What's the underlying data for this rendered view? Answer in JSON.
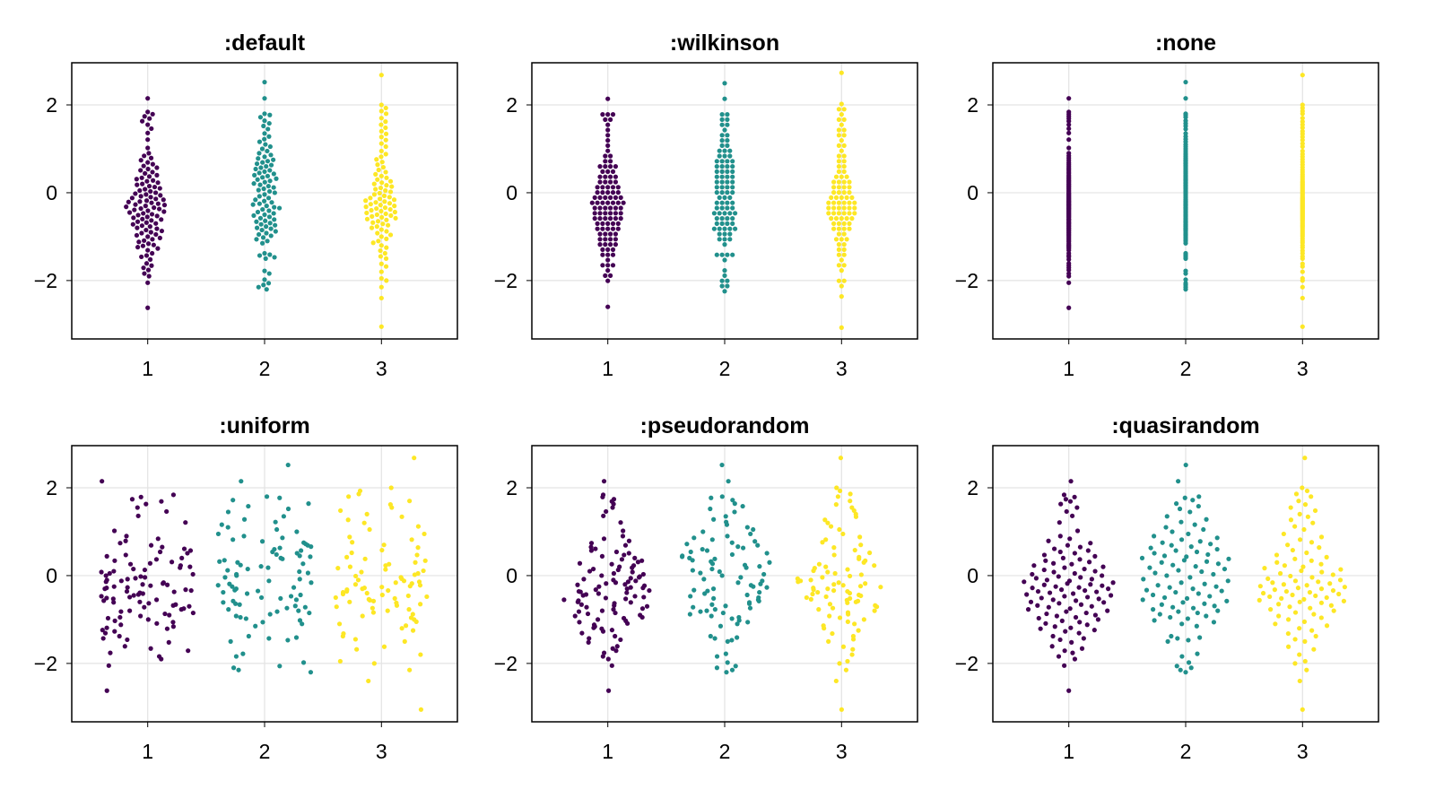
{
  "chart_data": {
    "type": "scatter",
    "subtype": "beeswarm",
    "xlim": [
      0.35,
      3.65
    ],
    "ylim": [
      -3.33,
      2.96
    ],
    "grid": true,
    "xticks": [
      1,
      2,
      3
    ],
    "xtick_labels": [
      "1",
      "2",
      "3"
    ],
    "yticks": [
      -2,
      0,
      2
    ],
    "ytick_labels": [
      "−2",
      "0",
      "2"
    ],
    "panels": [
      {
        "title": ":default",
        "algorithm": "default"
      },
      {
        "title": ":wilkinson",
        "algorithm": "wilkinson"
      },
      {
        "title": ":none",
        "algorithm": "none"
      },
      {
        "title": ":uniform",
        "algorithm": "uniform"
      },
      {
        "title": ":pseudorandom",
        "algorithm": "pseudorandom"
      },
      {
        "title": ":quasirandom",
        "algorithm": "quasirandom"
      }
    ],
    "series": [
      {
        "x": 1,
        "color": "#440154",
        "y": [
          -2.62,
          -2.05,
          -1.9,
          -1.84,
          -1.76,
          -1.71,
          -1.66,
          -1.61,
          -1.52,
          -1.46,
          -1.43,
          -1.38,
          -1.31,
          -1.27,
          -1.24,
          -1.21,
          -1.19,
          -1.16,
          -1.12,
          -1.09,
          -1.06,
          -1.03,
          -1.0,
          -0.97,
          -0.95,
          -0.92,
          -0.9,
          -0.87,
          -0.85,
          -0.82,
          -0.8,
          -0.77,
          -0.75,
          -0.72,
          -0.7,
          -0.68,
          -0.66,
          -0.63,
          -0.61,
          -0.6,
          -0.57,
          -0.55,
          -0.53,
          -0.51,
          -0.49,
          -0.47,
          -0.45,
          -0.43,
          -0.41,
          -0.39,
          -0.37,
          -0.36,
          -0.34,
          -0.32,
          -0.3,
          -0.28,
          -0.27,
          -0.25,
          -0.23,
          -0.21,
          -0.2,
          -0.18,
          -0.16,
          -0.14,
          -0.12,
          -0.1,
          -0.08,
          -0.06,
          -0.04,
          -0.02,
          0.0,
          0.03,
          0.05,
          0.08,
          0.1,
          0.13,
          0.15,
          0.18,
          0.2,
          0.23,
          0.26,
          0.28,
          0.31,
          0.34,
          0.37,
          0.4,
          0.44,
          0.47,
          0.51,
          0.54,
          0.57,
          0.61,
          0.65,
          0.69,
          0.74,
          0.79,
          0.84,
          0.9,
          1.02,
          1.21,
          1.36,
          1.46,
          1.55,
          1.63,
          1.69,
          1.74,
          1.79,
          1.84,
          2.15
        ]
      },
      {
        "x": 2,
        "color": "#21908c",
        "y": [
          -2.2,
          -2.15,
          -2.1,
          -2.06,
          -1.98,
          -1.84,
          -1.78,
          -1.5,
          -1.47,
          -1.43,
          -1.41,
          -1.38,
          -1.15,
          -1.1,
          -1.06,
          -1.02,
          -0.98,
          -0.95,
          -0.92,
          -0.88,
          -0.85,
          -0.82,
          -0.8,
          -0.77,
          -0.74,
          -0.72,
          -0.69,
          -0.66,
          -0.64,
          -0.61,
          -0.58,
          -0.55,
          -0.52,
          -0.5,
          -0.47,
          -0.44,
          -0.41,
          -0.38,
          -0.35,
          -0.33,
          -0.3,
          -0.27,
          -0.25,
          -0.22,
          -0.19,
          -0.16,
          -0.12,
          -0.08,
          -0.04,
          0.0,
          0.03,
          0.06,
          0.09,
          0.12,
          0.15,
          0.18,
          0.21,
          0.24,
          0.27,
          0.3,
          0.32,
          0.35,
          0.38,
          0.4,
          0.43,
          0.45,
          0.48,
          0.51,
          0.54,
          0.57,
          0.6,
          0.63,
          0.66,
          0.69,
          0.72,
          0.75,
          0.78,
          0.82,
          0.86,
          0.9,
          0.95,
          1.0,
          1.05,
          1.1,
          1.16,
          1.22,
          1.28,
          1.35,
          1.45,
          1.52,
          1.58,
          1.64,
          1.72,
          1.77,
          1.8,
          2.15,
          2.52
        ]
      },
      {
        "x": 3,
        "color": "#fde725",
        "y": [
          -3.05,
          -2.4,
          -2.15,
          -2.0,
          -1.95,
          -1.8,
          -1.68,
          -1.62,
          -1.5,
          -1.45,
          -1.38,
          -1.32,
          -1.25,
          -1.2,
          -1.14,
          -1.1,
          -1.05,
          -1.0,
          -0.96,
          -0.92,
          -0.88,
          -0.84,
          -0.8,
          -0.77,
          -0.74,
          -0.71,
          -0.68,
          -0.65,
          -0.62,
          -0.6,
          -0.58,
          -0.56,
          -0.54,
          -0.52,
          -0.5,
          -0.48,
          -0.46,
          -0.44,
          -0.42,
          -0.4,
          -0.38,
          -0.36,
          -0.34,
          -0.32,
          -0.3,
          -0.28,
          -0.26,
          -0.24,
          -0.22,
          -0.2,
          -0.18,
          -0.16,
          -0.14,
          -0.12,
          -0.1,
          -0.07,
          -0.04,
          -0.01,
          0.02,
          0.05,
          0.08,
          0.11,
          0.14,
          0.17,
          0.2,
          0.23,
          0.26,
          0.3,
          0.34,
          0.38,
          0.42,
          0.47,
          0.52,
          0.58,
          0.64,
          0.7,
          0.76,
          0.82,
          0.88,
          0.95,
          1.05,
          1.12,
          1.2,
          1.27,
          1.34,
          1.4,
          1.48,
          1.55,
          1.62,
          1.7,
          1.8,
          1.86,
          1.93,
          2.0,
          2.68
        ]
      }
    ]
  }
}
